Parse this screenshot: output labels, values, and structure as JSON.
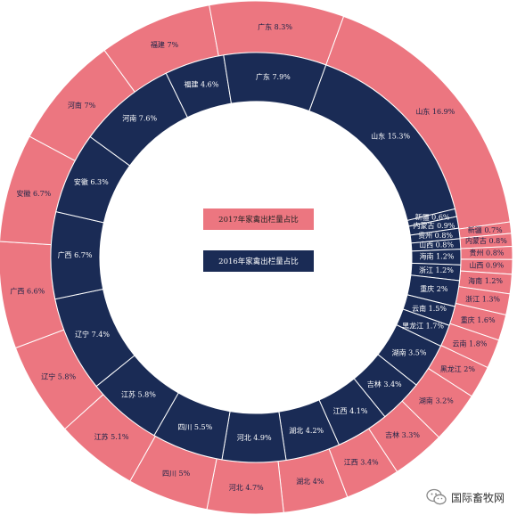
{
  "colors": {
    "outer": "#ec7680",
    "inner": "#1a2b55"
  },
  "chart_data": {
    "type": "pie",
    "legend": {
      "outer": "2017年家禽出栏量占比",
      "inner": "2016年家禽出栏量占比"
    },
    "outer_ring": [
      {
        "label": "山东",
        "value": 16.9
      },
      {
        "label": "新疆",
        "value": 0.7
      },
      {
        "label": "内蒙古",
        "value": 0.8
      },
      {
        "label": "贵州",
        "value": 0.8
      },
      {
        "label": "山西",
        "value": 0.9
      },
      {
        "label": "海南",
        "value": 1.2
      },
      {
        "label": "浙江",
        "value": 1.3
      },
      {
        "label": "重庆",
        "value": 1.6
      },
      {
        "label": "云南",
        "value": 1.8
      },
      {
        "label": "黑龙江",
        "value": 2.0
      },
      {
        "label": "湖南",
        "value": 3.2
      },
      {
        "label": "吉林",
        "value": 3.3
      },
      {
        "label": "江西",
        "value": 3.4
      },
      {
        "label": "湖北",
        "value": 4.0
      },
      {
        "label": "河北",
        "value": 4.7
      },
      {
        "label": "四川",
        "value": 5.0
      },
      {
        "label": "江苏",
        "value": 5.1
      },
      {
        "label": "辽宁",
        "value": 5.8
      },
      {
        "label": "广西",
        "value": 6.6
      },
      {
        "label": "安徽",
        "value": 6.7
      },
      {
        "label": "河南",
        "value": 7.0
      },
      {
        "label": "福建",
        "value": 7.0
      },
      {
        "label": "广东",
        "value": 8.3
      }
    ],
    "inner_ring": [
      {
        "label": "山东",
        "value": 15.3
      },
      {
        "label": "新疆",
        "value": 0.6
      },
      {
        "label": "内蒙古",
        "value": 0.9
      },
      {
        "label": "贵州",
        "value": 0.8
      },
      {
        "label": "山西",
        "value": 0.8
      },
      {
        "label": "海南",
        "value": 1.2
      },
      {
        "label": "浙江",
        "value": 1.2
      },
      {
        "label": "重庆",
        "value": 2.0
      },
      {
        "label": "云南",
        "value": 1.5
      },
      {
        "label": "黑龙江",
        "value": 1.7
      },
      {
        "label": "湖南",
        "value": 3.5
      },
      {
        "label": "吉林",
        "value": 3.4
      },
      {
        "label": "江西",
        "value": 4.1
      },
      {
        "label": "湖北",
        "value": 4.2
      },
      {
        "label": "河北",
        "value": 4.9
      },
      {
        "label": "四川",
        "value": 5.5
      },
      {
        "label": "江苏",
        "value": 5.8
      },
      {
        "label": "辽宁",
        "value": 7.4
      },
      {
        "label": "广西",
        "value": 6.7
      },
      {
        "label": "安徽",
        "value": 6.3
      },
      {
        "label": "河南",
        "value": 7.6
      },
      {
        "label": "福建",
        "value": 4.6
      },
      {
        "label": "广东",
        "value": 7.9
      }
    ]
  },
  "watermark": {
    "text": "国际畜牧网",
    "icon": "wechat-icon"
  }
}
